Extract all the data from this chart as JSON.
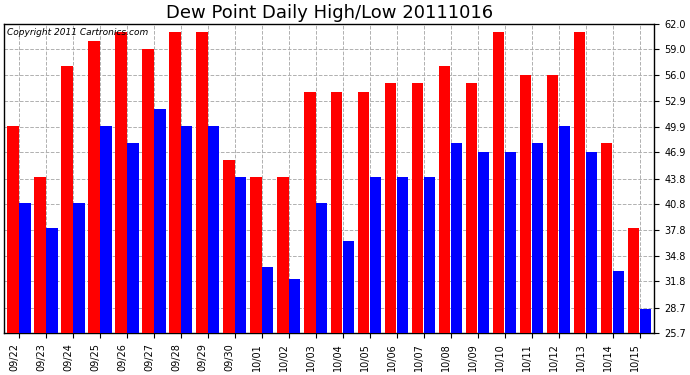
{
  "title": "Dew Point Daily High/Low 20111016",
  "copyright": "Copyright 2011 Cartronics.com",
  "dates": [
    "09/22",
    "09/23",
    "09/24",
    "09/25",
    "09/26",
    "09/27",
    "09/28",
    "09/29",
    "09/30",
    "10/01",
    "10/02",
    "10/03",
    "10/04",
    "10/05",
    "10/06",
    "10/07",
    "10/08",
    "10/09",
    "10/10",
    "10/11",
    "10/12",
    "10/13",
    "10/14",
    "10/15"
  ],
  "highs": [
    50.0,
    44.0,
    57.0,
    60.0,
    61.0,
    59.0,
    61.0,
    61.0,
    46.0,
    44.0,
    44.0,
    54.0,
    54.0,
    54.0,
    55.0,
    55.0,
    57.0,
    55.0,
    61.0,
    56.0,
    56.0,
    61.0,
    48.0,
    38.0
  ],
  "lows": [
    41.0,
    38.0,
    41.0,
    50.0,
    48.0,
    52.0,
    50.0,
    50.0,
    44.0,
    33.5,
    32.0,
    41.0,
    36.5,
    44.0,
    44.0,
    44.0,
    48.0,
    47.0,
    47.0,
    48.0,
    50.0,
    47.0,
    33.0,
    28.5
  ],
  "bar_color_high": "#ff0000",
  "bar_color_low": "#0000ff",
  "bg_color": "#ffffff",
  "plot_bg_color": "#ffffff",
  "grid_color": "#b0b0b0",
  "yticks": [
    25.7,
    28.7,
    31.8,
    34.8,
    37.8,
    40.8,
    43.8,
    46.9,
    49.9,
    52.9,
    56.0,
    59.0,
    62.0
  ],
  "ylim_min": 25.7,
  "ylim_max": 62.0,
  "title_fontsize": 13,
  "tick_fontsize": 7,
  "copyright_fontsize": 6.5
}
